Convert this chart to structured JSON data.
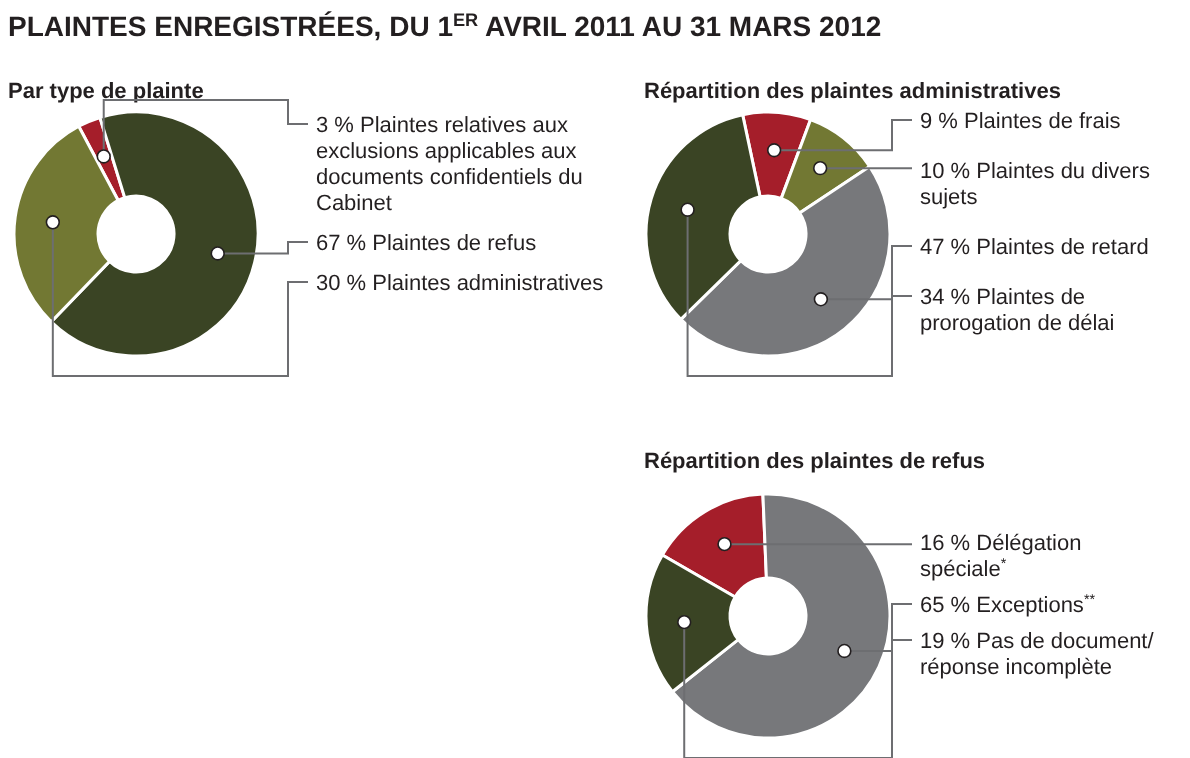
{
  "chart_data": [
    {
      "type": "donut",
      "title": "PLAINTES ENREGISTRÉES, DU 1$^{ER}$ AVRIL 2011 AU 31 MARS 2012",
      "subtitle": "Par type de plainte",
      "categories": [
        "Plaintes relatives aux exclusions applicables aux documents confidentiels du Cabinet",
        "Plaintes de refus",
        "Plaintes administratives"
      ],
      "values": [
        3,
        67,
        30
      ],
      "value_labels": [
        "3 %",
        "67 %",
        "30 %"
      ],
      "colors": [
        "#a51e2a",
        "#3a4424",
        "#727833"
      ]
    },
    {
      "type": "donut",
      "title": "Répartition des plaintes administratives",
      "categories": [
        "Plaintes de frais",
        "Plaintes du divers sujets",
        "Plaintes de retard",
        "Plaintes de prorogation de délai"
      ],
      "values": [
        9,
        10,
        47,
        34
      ],
      "value_labels": [
        "9 %",
        "10 %",
        "47 %",
        "34 %"
      ],
      "colors": [
        "#a51e2a",
        "#727833",
        "#77787b",
        "#3a4424"
      ]
    },
    {
      "type": "donut",
      "title": "Répartition des plaintes de refus",
      "categories": [
        "Délégation spéciale$^{*}$",
        "Exceptions$^{**}$",
        "Pas de document/ réponse incomplète"
      ],
      "values": [
        16,
        65,
        19
      ],
      "value_labels": [
        "16 %",
        "65 %",
        "19 %"
      ],
      "colors": [
        "#a51e2a",
        "#77787b",
        "#3a4424"
      ]
    }
  ]
}
